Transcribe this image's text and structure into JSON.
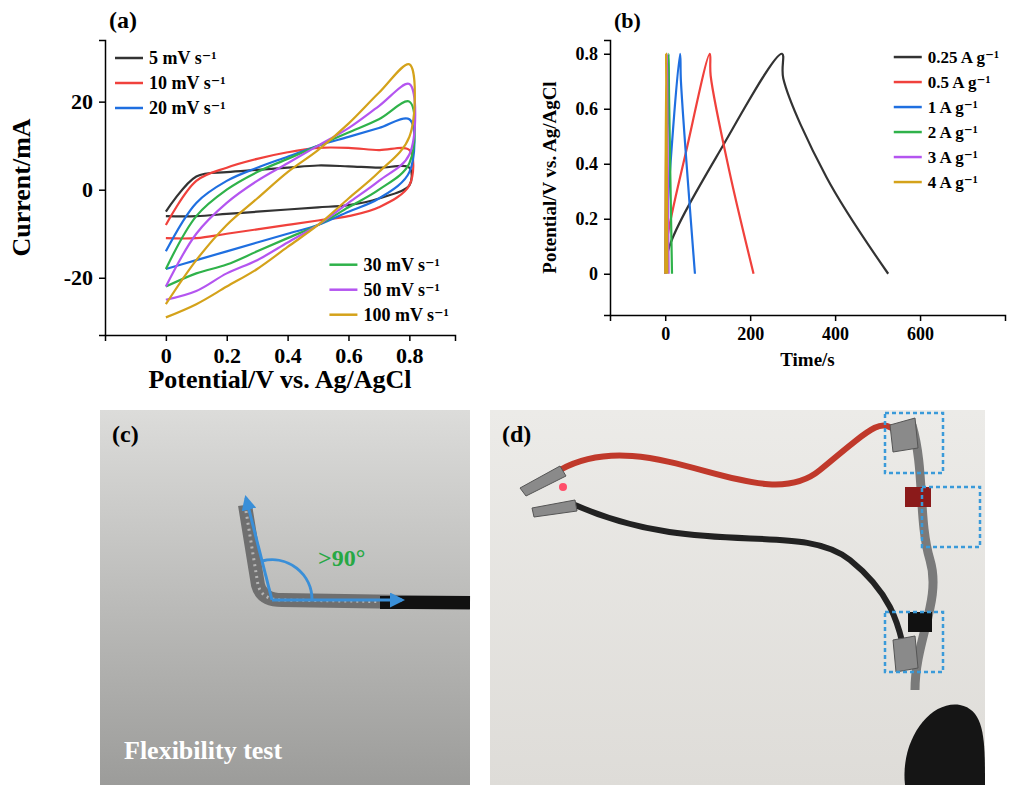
{
  "chart_data": [
    {
      "type": "line",
      "title": "(a)",
      "x_label": "Potential/V vs. Ag/AgCl",
      "y_label": "Current/mA",
      "xlim": [
        -0.2,
        0.95
      ],
      "ylim": [
        -33,
        34
      ],
      "xticks": [
        0,
        0.2,
        0.4,
        0.6,
        0.8
      ],
      "yticks": [
        -20,
        0,
        20
      ],
      "legend": "split",
      "x": [
        0,
        0.1,
        0.2,
        0.3,
        0.4,
        0.5,
        0.6,
        0.7,
        0.8,
        0.8,
        0.7,
        0.6,
        0.5,
        0.4,
        0.3,
        0.2,
        0.1,
        0
      ],
      "series": [
        {
          "name": "5 mV s⁻¹",
          "color": "#333333",
          "values": [
            -5,
            3,
            4,
            4.5,
            5,
            5.5,
            5.3,
            5,
            5,
            1,
            -2,
            -3.5,
            -4,
            -4.5,
            -5,
            -5.5,
            -6,
            -6
          ]
        },
        {
          "name": "10 mV s⁻¹",
          "color": "#f0413c",
          "values": [
            -8,
            2,
            5,
            7,
            8.5,
            9.5,
            9.5,
            9,
            9,
            1,
            -4,
            -6,
            -7,
            -8,
            -9,
            -10,
            -11,
            -11
          ]
        },
        {
          "name": "20 mV s⁻¹",
          "color": "#1f6fe0",
          "values": [
            -14,
            -3,
            2,
            5,
            7.5,
            10,
            12,
            14,
            16,
            4,
            -2,
            -5,
            -8,
            -10,
            -12,
            -14,
            -16,
            -18
          ]
        },
        {
          "name": "30 mV s⁻¹",
          "color": "#2fb24a",
          "values": [
            -18,
            -6,
            0,
            4,
            7,
            10,
            13,
            16,
            20,
            6,
            0,
            -4,
            -8,
            -11,
            -14,
            -17,
            -19,
            -22
          ]
        },
        {
          "name": "50 mV s⁻¹",
          "color": "#b455f0",
          "values": [
            -22,
            -10,
            -3,
            2,
            6,
            10,
            14,
            19,
            24,
            8,
            2,
            -3,
            -8,
            -12,
            -16,
            -19,
            -23,
            -25
          ]
        },
        {
          "name": "100 mV s⁻¹",
          "color": "#d4a21a",
          "values": [
            -26,
            -16,
            -8,
            -2,
            4,
            9,
            15,
            22,
            28.5,
            12,
            4,
            -2,
            -8,
            -13,
            -18,
            -22,
            -26,
            -29
          ]
        }
      ]
    },
    {
      "type": "line",
      "title": "(b)",
      "x_label": "Time/s",
      "y_label": "Potential/V vs. Ag/AgCl",
      "xlim": [
        -130,
        800
      ],
      "ylim": [
        -0.15,
        0.85
      ],
      "xticks": [
        0,
        200,
        400,
        600
      ],
      "yticks": [
        0,
        0.2,
        0.4,
        0.6,
        0.8
      ],
      "legend": "upper right",
      "series": [
        {
          "name": "0.25 A g⁻¹",
          "color": "#333333",
          "x": [
            0,
            10,
            130,
            275,
            278,
            380,
            525
          ],
          "values": [
            0,
            0.1,
            0.45,
            0.8,
            0.71,
            0.35,
            0
          ]
        },
        {
          "name": "0.5 A g⁻¹",
          "color": "#f0413c",
          "x": [
            0,
            4,
            50,
            105,
            107,
            150,
            208
          ],
          "values": [
            0,
            0.12,
            0.45,
            0.8,
            0.72,
            0.38,
            0
          ]
        },
        {
          "name": "1 A g⁻¹",
          "color": "#1f6fe0",
          "x": [
            0,
            2,
            35,
            37,
            70
          ],
          "values": [
            0,
            0.15,
            0.8,
            0.7,
            0
          ]
        },
        {
          "name": "2 A g⁻¹",
          "color": "#2fb24a",
          "x": [
            0,
            8,
            9,
            16
          ],
          "values": [
            0,
            0.8,
            0.65,
            0
          ]
        },
        {
          "name": "3 A g⁻¹",
          "color": "#b455f0",
          "x": [
            0,
            4,
            5,
            8
          ],
          "values": [
            0,
            0.8,
            0.6,
            0
          ]
        },
        {
          "name": "4 A g⁻¹",
          "color": "#d4a21a",
          "x": [
            0,
            2,
            3,
            5
          ],
          "values": [
            0,
            0.8,
            0.55,
            0
          ]
        }
      ]
    },
    {
      "type": "photo",
      "title": "(c)",
      "annotations": [
        ">90°",
        "Flexibility test"
      ]
    },
    {
      "type": "photo",
      "title": "(d)"
    }
  ]
}
